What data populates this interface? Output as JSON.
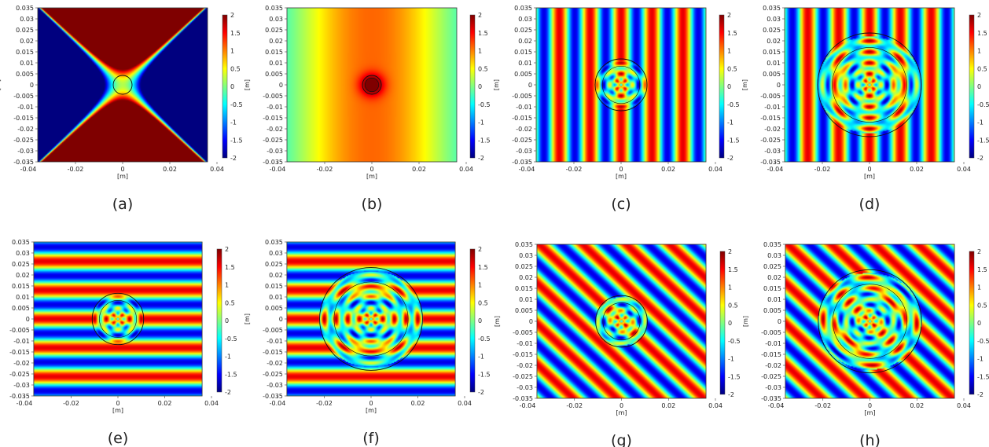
{
  "chart_data": {
    "type": "heatmap",
    "colormap": "rainbow",
    "x_ticks": [
      "-0.04",
      "-0.02",
      "0",
      "0.02",
      "0.04"
    ],
    "y_ticks": [
      "0.035",
      "0.03",
      "0.025",
      "0.02",
      "0.015",
      "0.01",
      "0.005",
      "0",
      "-0.005",
      "-0.01",
      "-0.015",
      "-0.02",
      "-0.025",
      "-0.03",
      "-0.035"
    ],
    "xlabel": "[m]",
    "ylabel": "[m]",
    "xlim": [
      -0.04,
      0.04
    ],
    "ylim": [
      -0.035,
      0.035
    ],
    "colorbar": {
      "range": [
        -2,
        2
      ],
      "ticks": [
        "2",
        "1.5",
        "1",
        "0.5",
        "0",
        "-0.5",
        "-1",
        "-1.5",
        "-2"
      ]
    },
    "panels": [
      {
        "caption": "(a)",
        "field": "saddle",
        "scatterer_radius": 0.004
      },
      {
        "caption": "(b)",
        "field": "vertical",
        "k": 55,
        "scatterer_radius": 0.004
      },
      {
        "caption": "(c)",
        "field": "vertical",
        "k": 480,
        "scatterer_radius": 0.011
      },
      {
        "caption": "(d)",
        "field": "vertical",
        "k": 480,
        "scatterer_radius": 0.022
      },
      {
        "caption": "(e)",
        "field": "horizontal",
        "k": 480,
        "scatterer_radius": 0.011
      },
      {
        "caption": "(f)",
        "field": "horizontal",
        "k": 480,
        "scatterer_radius": 0.022
      },
      {
        "caption": "(g)",
        "field": "diagonal",
        "k": 480,
        "scatterer_radius": 0.011
      },
      {
        "caption": "(h)",
        "field": "diagonal",
        "k": 480,
        "scatterer_radius": 0.022
      }
    ]
  }
}
